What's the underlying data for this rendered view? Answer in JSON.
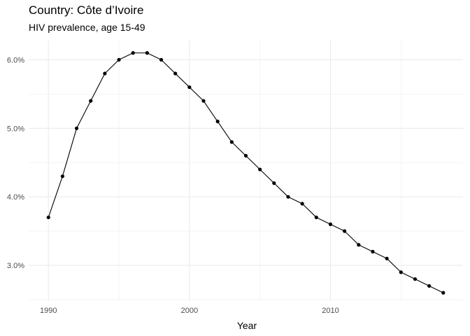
{
  "chart_data": {
    "type": "line",
    "title": "Country: Côte d’Ivoire",
    "subtitle": "HIV prevalence, age 15-49",
    "xlabel": "Year",
    "ylabel": "",
    "x": [
      1990,
      1991,
      1992,
      1993,
      1994,
      1995,
      1996,
      1997,
      1998,
      1999,
      2000,
      2001,
      2002,
      2003,
      2004,
      2005,
      2006,
      2007,
      2008,
      2009,
      2010,
      2011,
      2012,
      2013,
      2014,
      2015,
      2016,
      2017,
      2018
    ],
    "series": [
      {
        "values": [
          3.7,
          4.3,
          5.0,
          5.4,
          5.8,
          6.0,
          6.1,
          6.1,
          6.0,
          5.8,
          5.6,
          5.4,
          5.1,
          4.8,
          4.6,
          4.4,
          4.2,
          4.0,
          3.9,
          3.7,
          3.6,
          3.5,
          3.3,
          3.2,
          3.1,
          2.9,
          2.8,
          2.7,
          2.6
        ]
      }
    ],
    "xlim": [
      1988.6,
      2019.4
    ],
    "ylim": [
      2.48,
      6.28
    ],
    "x_ticks": [
      1990,
      2000,
      2010
    ],
    "x_tick_labels": [
      "1990",
      "2000",
      "2010"
    ],
    "x_minor_ticks": [
      1995,
      2005,
      2015
    ],
    "y_ticks": [
      3,
      4,
      5,
      6
    ],
    "y_tick_labels": [
      "3.0%",
      "4.0%",
      "5.0%",
      "6.0%"
    ],
    "y_minor_ticks": [
      2.5,
      3.5,
      4.5,
      5.5
    ],
    "grid": true,
    "line_color": "#000000",
    "grid_color": "#ebebeb",
    "background": "#ffffff"
  }
}
